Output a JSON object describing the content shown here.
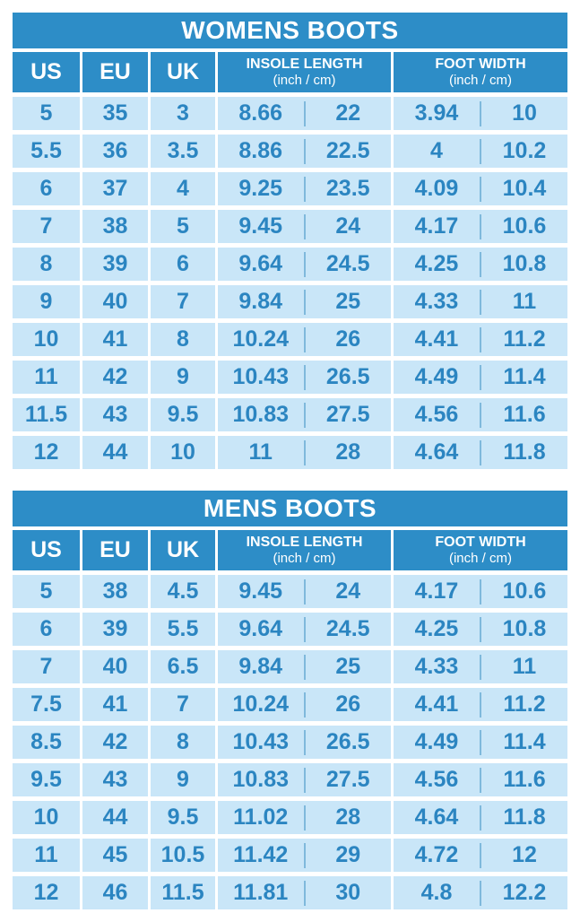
{
  "colors": {
    "header_bg": "#2d8dc7",
    "header_text": "#ffffff",
    "cell_bg": "#c9e6f8",
    "cell_text": "#2b85c1",
    "divider": "#7fb9dc",
    "page_bg": "#ffffff"
  },
  "tables": [
    {
      "id": "womens",
      "title": "WOMENS BOOTS",
      "columns": {
        "us": "US",
        "eu": "EU",
        "uk": "UK",
        "insole_title": "INSOLE LENGTH",
        "insole_sub": "(inch / cm)",
        "foot_title": "FOOT WIDTH",
        "foot_sub": "(inch / cm)"
      },
      "rows": [
        {
          "us": "5",
          "eu": "35",
          "uk": "3",
          "insole_inch": "8.66",
          "insole_cm": "22",
          "foot_inch": "3.94",
          "foot_cm": "10"
        },
        {
          "us": "5.5",
          "eu": "36",
          "uk": "3.5",
          "insole_inch": "8.86",
          "insole_cm": "22.5",
          "foot_inch": "4",
          "foot_cm": "10.2"
        },
        {
          "us": "6",
          "eu": "37",
          "uk": "4",
          "insole_inch": "9.25",
          "insole_cm": "23.5",
          "foot_inch": "4.09",
          "foot_cm": "10.4"
        },
        {
          "us": "7",
          "eu": "38",
          "uk": "5",
          "insole_inch": "9.45",
          "insole_cm": "24",
          "foot_inch": "4.17",
          "foot_cm": "10.6"
        },
        {
          "us": "8",
          "eu": "39",
          "uk": "6",
          "insole_inch": "9.64",
          "insole_cm": "24.5",
          "foot_inch": "4.25",
          "foot_cm": "10.8"
        },
        {
          "us": "9",
          "eu": "40",
          "uk": "7",
          "insole_inch": "9.84",
          "insole_cm": "25",
          "foot_inch": "4.33",
          "foot_cm": "11"
        },
        {
          "us": "10",
          "eu": "41",
          "uk": "8",
          "insole_inch": "10.24",
          "insole_cm": "26",
          "foot_inch": "4.41",
          "foot_cm": "11.2"
        },
        {
          "us": "11",
          "eu": "42",
          "uk": "9",
          "insole_inch": "10.43",
          "insole_cm": "26.5",
          "foot_inch": "4.49",
          "foot_cm": "11.4"
        },
        {
          "us": "11.5",
          "eu": "43",
          "uk": "9.5",
          "insole_inch": "10.83",
          "insole_cm": "27.5",
          "foot_inch": "4.56",
          "foot_cm": "11.6"
        },
        {
          "us": "12",
          "eu": "44",
          "uk": "10",
          "insole_inch": "11",
          "insole_cm": "28",
          "foot_inch": "4.64",
          "foot_cm": "11.8"
        }
      ]
    },
    {
      "id": "mens",
      "title": "MENS BOOTS",
      "columns": {
        "us": "US",
        "eu": "EU",
        "uk": "UK",
        "insole_title": "INSOLE LENGTH",
        "insole_sub": "(inch / cm)",
        "foot_title": "FOOT WIDTH",
        "foot_sub": "(inch / cm)"
      },
      "rows": [
        {
          "us": "5",
          "eu": "38",
          "uk": "4.5",
          "insole_inch": "9.45",
          "insole_cm": "24",
          "foot_inch": "4.17",
          "foot_cm": "10.6"
        },
        {
          "us": "6",
          "eu": "39",
          "uk": "5.5",
          "insole_inch": "9.64",
          "insole_cm": "24.5",
          "foot_inch": "4.25",
          "foot_cm": "10.8"
        },
        {
          "us": "7",
          "eu": "40",
          "uk": "6.5",
          "insole_inch": "9.84",
          "insole_cm": "25",
          "foot_inch": "4.33",
          "foot_cm": "11"
        },
        {
          "us": "7.5",
          "eu": "41",
          "uk": "7",
          "insole_inch": "10.24",
          "insole_cm": "26",
          "foot_inch": "4.41",
          "foot_cm": "11.2"
        },
        {
          "us": "8.5",
          "eu": "42",
          "uk": "8",
          "insole_inch": "10.43",
          "insole_cm": "26.5",
          "foot_inch": "4.49",
          "foot_cm": "11.4"
        },
        {
          "us": "9.5",
          "eu": "43",
          "uk": "9",
          "insole_inch": "10.83",
          "insole_cm": "27.5",
          "foot_inch": "4.56",
          "foot_cm": "11.6"
        },
        {
          "us": "10",
          "eu": "44",
          "uk": "9.5",
          "insole_inch": "11.02",
          "insole_cm": "28",
          "foot_inch": "4.64",
          "foot_cm": "11.8"
        },
        {
          "us": "11",
          "eu": "45",
          "uk": "10.5",
          "insole_inch": "11.42",
          "insole_cm": "29",
          "foot_inch": "4.72",
          "foot_cm": "12"
        },
        {
          "us": "12",
          "eu": "46",
          "uk": "11.5",
          "insole_inch": "11.81",
          "insole_cm": "30",
          "foot_inch": "4.8",
          "foot_cm": "12.2"
        }
      ]
    }
  ]
}
